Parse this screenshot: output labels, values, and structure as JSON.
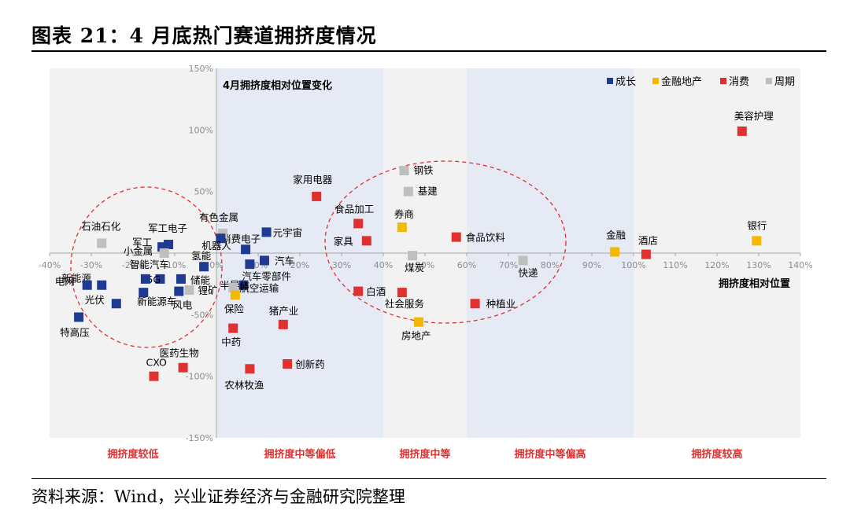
{
  "header": {
    "title": "图表 21：4 月底热门赛道拥挤度情况"
  },
  "footer": {
    "source": "资料来源：Wind，兴业证券经济与金融研究院整理"
  },
  "colors": {
    "成长": "#1f3a93",
    "金融地产": "#f5b800",
    "消费": "#e03131",
    "周期": "#bfbfbf"
  },
  "chart_data": {
    "type": "scatter",
    "title": "4月拥挤度相对位置变化",
    "xlabel": "拥挤度相对位置",
    "ylabel": "",
    "xlim": [
      -40,
      140
    ],
    "ylim": [
      -150,
      150
    ],
    "xticks": [
      "-40%",
      "-30%",
      "-20%",
      "-10%",
      "0%",
      "10%",
      "20%",
      "30%",
      "40%",
      "50%",
      "60%",
      "70%",
      "80%",
      "90%",
      "100%",
      "110%",
      "120%",
      "130%",
      "140%"
    ],
    "yticks": [
      "150%",
      "100%",
      "50%",
      "-50%",
      "-100%",
      "-150%"
    ],
    "legend": [
      "成长",
      "金融地产",
      "消费",
      "周期"
    ],
    "legend_position": "top-right",
    "zones": [
      "拥挤度较低",
      "拥挤度中等偏低",
      "拥挤度中等",
      "拥挤度中等偏高",
      "拥挤度较高"
    ],
    "points": [
      {
        "label": "美容护理",
        "group": "消费",
        "x": 126,
        "y": 99
      },
      {
        "label": "银行",
        "group": "金融地产",
        "x": 129.5,
        "y": 10
      },
      {
        "label": "酒店",
        "group": "消费",
        "x": 103,
        "y": -1
      },
      {
        "label": "金融",
        "group": "金融地产",
        "x": 95.5,
        "y": 1
      },
      {
        "label": "快递",
        "group": "周期",
        "x": 73.5,
        "y": -6
      },
      {
        "label": "食品饮料",
        "group": "消费",
        "x": 57.5,
        "y": 13
      },
      {
        "label": "种植业",
        "group": "消费",
        "x": 62,
        "y": -41
      },
      {
        "label": "钢铁",
        "group": "周期",
        "x": 45,
        "y": 67
      },
      {
        "label": "基建",
        "group": "周期",
        "x": 46,
        "y": 50
      },
      {
        "label": "券商",
        "group": "金融地产",
        "x": 44.5,
        "y": 21
      },
      {
        "label": "煤炭",
        "group": "周期",
        "x": 47,
        "y": -2
      },
      {
        "label": "社会服务",
        "group": "消费",
        "x": 44.5,
        "y": -32
      },
      {
        "label": "房地产",
        "group": "金融地产",
        "x": 48.5,
        "y": -56
      },
      {
        "label": "白酒",
        "group": "消费",
        "x": 34,
        "y": -31
      },
      {
        "label": "食品加工",
        "group": "消费",
        "x": 34,
        "y": 24
      },
      {
        "label": "家具",
        "group": "消费",
        "x": 36,
        "y": 10
      },
      {
        "label": "家用电器",
        "group": "消费",
        "x": 24,
        "y": 46
      },
      {
        "label": "元宇宙",
        "group": "成长",
        "x": 12,
        "y": 17
      },
      {
        "label": "消费电子",
        "group": "成长",
        "x": 7,
        "y": 3
      },
      {
        "label": "有色金属",
        "group": "周期",
        "x": 1.5,
        "y": 16
      },
      {
        "label": "机器人",
        "group": "成长",
        "x": 1,
        "y": 12
      },
      {
        "label": "汽车",
        "group": "成长",
        "x": 11.5,
        "y": -6
      },
      {
        "label": "汽车零部件",
        "group": "成长",
        "x": 8,
        "y": -9
      },
      {
        "label": "半导体",
        "group": "成长",
        "x": 6.5,
        "y": -26
      },
      {
        "label": "航空运输",
        "group": "周期",
        "x": 4,
        "y": -28
      },
      {
        "label": "保险",
        "group": "金融地产",
        "x": 4.5,
        "y": -34
      },
      {
        "label": "猪产业",
        "group": "消费",
        "x": 16,
        "y": -58
      },
      {
        "label": "中药",
        "group": "消费",
        "x": 4,
        "y": -61
      },
      {
        "label": "创新药",
        "group": "消费",
        "x": 17,
        "y": -90
      },
      {
        "label": "农林牧渔",
        "group": "消费",
        "x": 8,
        "y": -94
      },
      {
        "label": "氢能",
        "group": "成长",
        "x": -3,
        "y": -11
      },
      {
        "label": "储能",
        "group": "成长",
        "x": -8.5,
        "y": -21
      },
      {
        "label": "锂矿",
        "group": "周期",
        "x": -6.5,
        "y": -30
      },
      {
        "label": "风电",
        "group": "成长",
        "x": -9,
        "y": -31
      },
      {
        "label": "5G",
        "group": "成长",
        "x": -13.5,
        "y": -21
      },
      {
        "label": "智能汽车",
        "group": "成长",
        "x": -17,
        "y": -21
      },
      {
        "label": "新能源车",
        "group": "成长",
        "x": -17.5,
        "y": -32
      },
      {
        "label": "军工电子",
        "group": "成长",
        "x": -11.5,
        "y": 7
      },
      {
        "label": "军工",
        "group": "成长",
        "x": -13,
        "y": 5
      },
      {
        "label": "小金属",
        "group": "周期",
        "x": -12.5,
        "y": 0
      },
      {
        "label": "新能源",
        "group": "成长",
        "x": -27.5,
        "y": -26
      },
      {
        "label": "光伏",
        "group": "成长",
        "x": -24,
        "y": -41
      },
      {
        "label": "石油石化",
        "group": "周期",
        "x": -27.5,
        "y": 8
      },
      {
        "label": "电网",
        "group": "成长",
        "x": -31,
        "y": -26
      },
      {
        "label": "特高压",
        "group": "成长",
        "x": -33,
        "y": -52
      },
      {
        "label": "CXO",
        "group": "消费",
        "x": -15,
        "y": -100
      },
      {
        "label": "医药生物",
        "group": "消费",
        "x": -8,
        "y": -93
      }
    ]
  }
}
